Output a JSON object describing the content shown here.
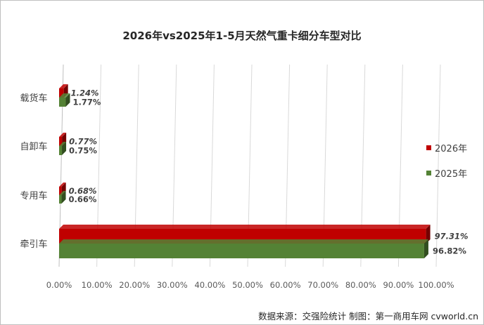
{
  "chart_data": {
    "type": "bar",
    "orientation": "horizontal",
    "title": "2026年vs2025年1-5月天然气重卡细分车型对比",
    "categories": [
      "载货车",
      "自卸车",
      "专用车",
      "牵引车"
    ],
    "series": [
      {
        "name": "2026年",
        "values": [
          1.24,
          0.77,
          0.68,
          97.31
        ],
        "labels": [
          "1.24%",
          "0.77%",
          "0.68%",
          "97.31%"
        ],
        "color": "#c00000"
      },
      {
        "name": "2025年",
        "values": [
          1.77,
          0.75,
          0.66,
          96.82
        ],
        "labels": [
          "1.77%",
          "0.75%",
          "0.66%",
          "96.82%"
        ],
        "color": "#548235"
      }
    ],
    "xlim": [
      0,
      100
    ],
    "x_ticks": [
      "0.00%",
      "10.00%",
      "20.00%",
      "30.00%",
      "40.00%",
      "50.00%",
      "60.00%",
      "70.00%",
      "80.00%",
      "90.00%",
      "100.00%"
    ],
    "grid": true,
    "legend": "right",
    "source": "数据来源：交强险统计  制图：第一商用车网 cvworld.cn"
  }
}
